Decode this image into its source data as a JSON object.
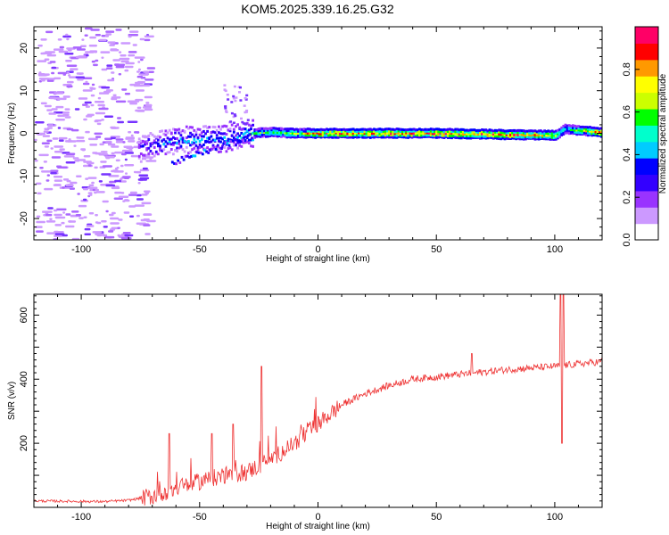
{
  "page_title": "KOM5.2025.339.16.25.G32",
  "chart_data": [
    {
      "type": "heatmap",
      "title": "KOM5.2025.339.16.25.G32",
      "xlabel": "Height of straight line (km)",
      "ylabel": "Frequency (Hz)",
      "xlim": [
        -120,
        120
      ],
      "ylim": [
        -25,
        25
      ],
      "xticks": [
        -100,
        -50,
        0,
        50,
        100
      ],
      "yticks": [
        -20,
        -10,
        0,
        10,
        20
      ],
      "colorbar": {
        "label": "Normalized spectral amplitude",
        "range": [
          0,
          1
        ],
        "ticks": [
          "0.0",
          "0.2",
          "0.4",
          "0.6",
          "0.8"
        ],
        "tick_values": [
          0.0,
          0.2,
          0.4,
          0.6,
          0.8
        ],
        "colors": [
          "#ffffff",
          "#cc99ff",
          "#9933ff",
          "#3300ff",
          "#0000ff",
          "#00ccff",
          "#00ffcc",
          "#00ff00",
          "#ccff00",
          "#ffff00",
          "#ff9900",
          "#ff0000",
          "#ff0066"
        ]
      },
      "ridge": [
        {
          "x": -75,
          "freq": -3.5,
          "amp": 0.25
        },
        {
          "x": -65,
          "freq": -2.0,
          "amp": 0.35
        },
        {
          "x": -55,
          "freq": -1.5,
          "amp": 0.4
        },
        {
          "x": -45,
          "freq": -1.5,
          "amp": 0.4
        },
        {
          "x": -35,
          "freq": -1.0,
          "amp": 0.4
        },
        {
          "x": -28,
          "freq": 0.0,
          "amp": 0.55
        },
        {
          "x": -20,
          "freq": 0.3,
          "amp": 0.6
        },
        {
          "x": -10,
          "freq": 0.0,
          "amp": 0.7
        },
        {
          "x": 0,
          "freq": 0.0,
          "amp": 0.85
        },
        {
          "x": 20,
          "freq": 0.0,
          "amp": 0.85
        },
        {
          "x": 50,
          "freq": 0.0,
          "amp": 0.9
        },
        {
          "x": 80,
          "freq": -0.3,
          "amp": 0.9
        },
        {
          "x": 100,
          "freq": -0.5,
          "amp": 0.8
        },
        {
          "x": 104,
          "freq": 1.0,
          "amp": 0.5
        },
        {
          "x": 120,
          "freq": 0.2,
          "amp": 0.95
        }
      ]
    },
    {
      "type": "line",
      "xlabel": "Height of straight line (km)",
      "ylabel": "SNR (v/v)",
      "xlim": [
        -120,
        120
      ],
      "ylim": [
        0,
        665
      ],
      "xticks": [
        -100,
        -50,
        0,
        50,
        100
      ],
      "yticks": [
        200,
        400,
        600
      ],
      "color": "#ee3333",
      "trend": [
        {
          "x": -120,
          "y": 20
        },
        {
          "x": -90,
          "y": 18
        },
        {
          "x": -80,
          "y": 22
        },
        {
          "x": -70,
          "y": 35
        },
        {
          "x": -60,
          "y": 60
        },
        {
          "x": -50,
          "y": 80
        },
        {
          "x": -40,
          "y": 100
        },
        {
          "x": -30,
          "y": 110
        },
        {
          "x": -20,
          "y": 150
        },
        {
          "x": -10,
          "y": 200
        },
        {
          "x": 0,
          "y": 260
        },
        {
          "x": 10,
          "y": 320
        },
        {
          "x": 20,
          "y": 355
        },
        {
          "x": 30,
          "y": 380
        },
        {
          "x": 40,
          "y": 400
        },
        {
          "x": 60,
          "y": 415
        },
        {
          "x": 80,
          "y": 430
        },
        {
          "x": 100,
          "y": 440
        },
        {
          "x": 120,
          "y": 455
        }
      ],
      "spikes": [
        {
          "x": -63,
          "y": 230
        },
        {
          "x": -45,
          "y": 230
        },
        {
          "x": -36,
          "y": 260
        },
        {
          "x": -24,
          "y": 440
        },
        {
          "x": 65,
          "y": 480
        },
        {
          "x": 102.5,
          "y": 665
        },
        {
          "x": 103,
          "y": 200
        },
        {
          "x": 103.5,
          "y": 665
        }
      ]
    }
  ]
}
